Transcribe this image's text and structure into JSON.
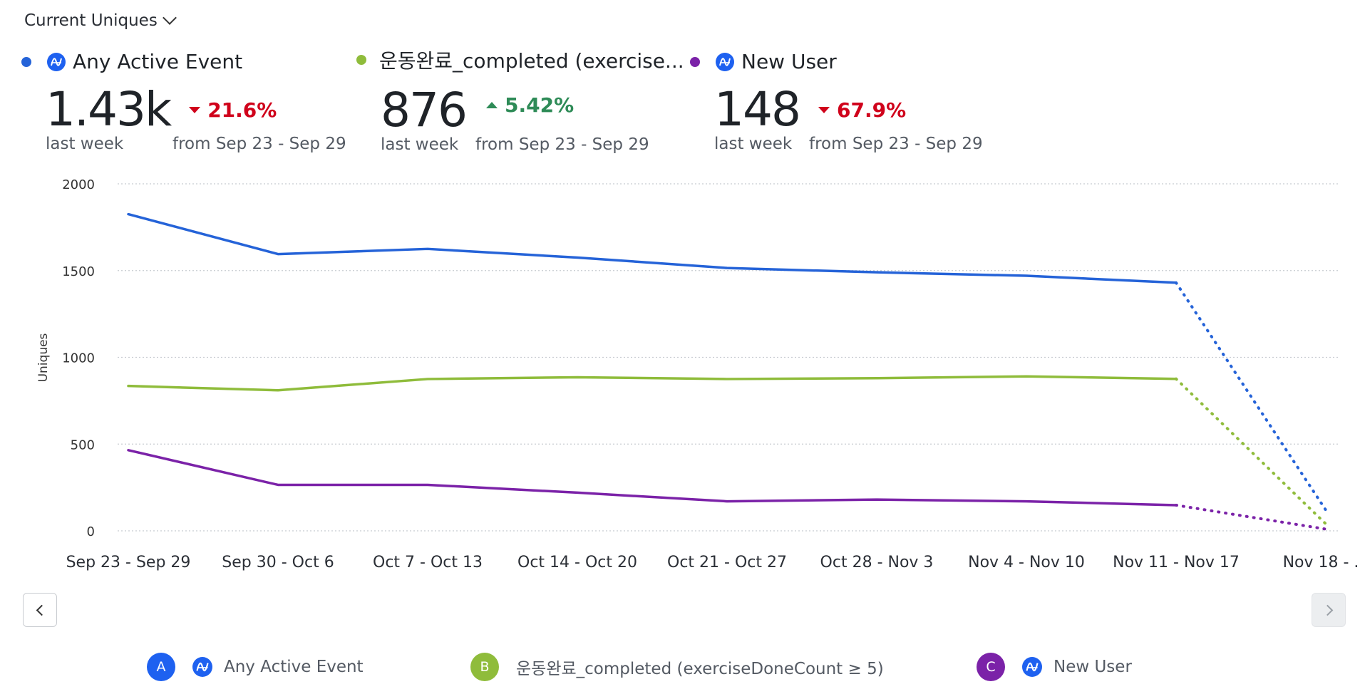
{
  "metric_selector": {
    "label": "Current Uniques"
  },
  "kpis": [
    {
      "name": "Any Active Event",
      "color": "#2563d8",
      "has_icon": true,
      "value": "1.43k",
      "period": "last week",
      "delta": "21.6%",
      "direction": "down",
      "from": "from Sep 23 - Sep 29"
    },
    {
      "name": "운동완료_completed (exercise...",
      "color": "#8fbc3b",
      "has_icon": false,
      "value": "876",
      "period": "last week",
      "delta": "5.42%",
      "direction": "up",
      "from": "from Sep 23 - Sep 29"
    },
    {
      "name": "New User",
      "color": "#7b22a8",
      "has_icon": true,
      "value": "148",
      "period": "last week",
      "delta": "67.9%",
      "direction": "down",
      "from": "from Sep 23 - Sep 29"
    }
  ],
  "chart_data": {
    "type": "line",
    "ylabel": "Uniques",
    "xlabel": "",
    "ylim": [
      0,
      2000
    ],
    "yticks": [
      0,
      500,
      1000,
      1500,
      2000
    ],
    "grid": true,
    "categories": [
      "Sep 23 - Sep 29",
      "Sep 30 - Oct 6",
      "Oct 7 - Oct 13",
      "Oct 14 - Oct 20",
      "Oct 21 - Oct 27",
      "Oct 28 - Nov 3",
      "Nov 4 - Nov 10",
      "Nov 11 - Nov 17",
      "Nov 18 - ..."
    ],
    "incomplete_from_index": 7,
    "series": [
      {
        "name": "Any Active Event",
        "color": "#2563d8",
        "values": [
          1825,
          1595,
          1625,
          1575,
          1515,
          1490,
          1470,
          1430,
          120
        ]
      },
      {
        "name": "운동완료_completed (exerciseDoneCount ≥ 5)",
        "color": "#8fbc3b",
        "values": [
          835,
          810,
          875,
          885,
          875,
          880,
          890,
          876,
          40
        ]
      },
      {
        "name": "New User",
        "color": "#7b22a8",
        "values": [
          465,
          265,
          265,
          220,
          170,
          180,
          170,
          148,
          10
        ]
      }
    ]
  },
  "legend": [
    {
      "badge": "A",
      "label": "Any Active Event",
      "color": "#1e61f0",
      "has_icon": true
    },
    {
      "badge": "B",
      "label": "운동완료_completed (exerciseDoneCount ≥ 5)",
      "color": "#8fbc3b",
      "has_icon": false
    },
    {
      "badge": "C",
      "label": "New User",
      "color": "#7b22a8",
      "has_icon": true
    }
  ],
  "pager": {
    "prev_icon": "chevron-left-icon",
    "next_icon": "chevron-right-icon"
  }
}
